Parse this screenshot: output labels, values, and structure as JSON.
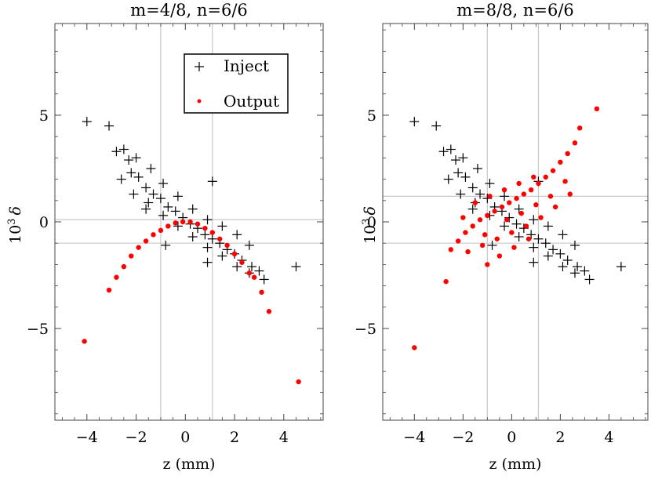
{
  "chart_data": [
    {
      "type": "scatter",
      "title": "m=4/8, n=6/6",
      "xlabel": "z (mm)",
      "ylabel_base": "10",
      "ylabel_exp": "3",
      "ylabel_sym": "δ",
      "xlim": [
        -5.3,
        5.6
      ],
      "ylim": [
        -9.3,
        9.3
      ],
      "xticks": [
        {
          "v": -4,
          "label": "−4"
        },
        {
          "v": -2,
          "label": "−2"
        },
        {
          "v": 0,
          "label": "0"
        },
        {
          "v": 2,
          "label": "2"
        },
        {
          "v": 4,
          "label": "4"
        }
      ],
      "yticks": [
        {
          "v": 5,
          "label": "5"
        },
        {
          "v": 0,
          "label": "0"
        },
        {
          "v": -5,
          "label": "−5"
        }
      ],
      "grid_x": [
        -1.0,
        1.1
      ],
      "grid_y": [
        0.1,
        -1.0
      ],
      "legend": {
        "placement": "top-center",
        "entries": [
          "Inject",
          "Output"
        ]
      },
      "series": [
        {
          "name": "Inject",
          "marker": "plus",
          "color": "#000000",
          "points": [
            [
              -4.0,
              4.7
            ],
            [
              -3.1,
              4.5
            ],
            [
              -2.8,
              3.3
            ],
            [
              -2.5,
              3.4
            ],
            [
              -2.3,
              2.9
            ],
            [
              -2.6,
              2.0
            ],
            [
              -2.2,
              2.3
            ],
            [
              -1.9,
              2.1
            ],
            [
              -1.6,
              1.6
            ],
            [
              -1.3,
              1.3
            ],
            [
              -1.0,
              1.1
            ],
            [
              -0.7,
              0.7
            ],
            [
              -0.4,
              0.5
            ],
            [
              -0.1,
              0.2
            ],
            [
              0.2,
              -0.1
            ],
            [
              0.5,
              -0.3
            ],
            [
              0.8,
              -0.6
            ],
            [
              1.1,
              -0.8
            ],
            [
              1.4,
              -1.0
            ],
            [
              1.7,
              -1.3
            ],
            [
              2.0,
              -1.5
            ],
            [
              2.3,
              -1.8
            ],
            [
              2.7,
              -2.1
            ],
            [
              3.0,
              -2.3
            ],
            [
              3.2,
              -2.7
            ],
            [
              4.5,
              -2.1
            ],
            [
              1.1,
              1.9
            ],
            [
              -1.6,
              0.6
            ],
            [
              0.9,
              -1.9
            ],
            [
              -0.8,
              -1.1
            ],
            [
              -2.0,
              3.0
            ],
            [
              -1.4,
              2.5
            ],
            [
              -0.9,
              1.8
            ],
            [
              -0.3,
              1.2
            ],
            [
              0.3,
              0.6
            ],
            [
              0.9,
              0.1
            ],
            [
              1.5,
              -0.2
            ],
            [
              2.1,
              -0.6
            ],
            [
              2.6,
              -1.1
            ],
            [
              -2.1,
              1.3
            ],
            [
              -1.5,
              0.9
            ],
            [
              -0.9,
              0.3
            ],
            [
              -0.3,
              -0.2
            ],
            [
              0.3,
              -0.7
            ],
            [
              0.9,
              -1.2
            ],
            [
              1.5,
              -1.6
            ],
            [
              2.1,
              -2.1
            ],
            [
              2.6,
              -2.4
            ]
          ]
        },
        {
          "name": "Output",
          "marker": "dot",
          "color": "#ff0000",
          "points": [
            [
              -4.1,
              -5.6
            ],
            [
              -3.1,
              -3.2
            ],
            [
              -2.8,
              -2.6
            ],
            [
              -2.5,
              -2.1
            ],
            [
              -2.2,
              -1.6
            ],
            [
              -1.9,
              -1.2
            ],
            [
              -1.6,
              -0.9
            ],
            [
              -1.3,
              -0.6
            ],
            [
              -1.0,
              -0.4
            ],
            [
              -0.7,
              -0.2
            ],
            [
              -0.4,
              -0.05
            ],
            [
              -0.1,
              0.0
            ],
            [
              0.2,
              0.0
            ],
            [
              0.5,
              -0.1
            ],
            [
              0.8,
              -0.3
            ],
            [
              1.1,
              -0.5
            ],
            [
              1.4,
              -0.8
            ],
            [
              1.7,
              -1.1
            ],
            [
              2.0,
              -1.5
            ],
            [
              2.3,
              -1.9
            ],
            [
              2.6,
              -2.4
            ],
            [
              2.8,
              -2.6
            ],
            [
              3.1,
              -3.3
            ],
            [
              3.4,
              -4.2
            ],
            [
              4.6,
              -7.5
            ]
          ]
        }
      ]
    },
    {
      "type": "scatter",
      "title": "m=8/8, n=6/6",
      "xlabel": "z (mm)",
      "ylabel_base": "10",
      "ylabel_exp": "3",
      "ylabel_sym": "δ",
      "xlim": [
        -5.3,
        5.6
      ],
      "ylim": [
        -9.3,
        9.3
      ],
      "xticks": [
        {
          "v": -4,
          "label": "−4"
        },
        {
          "v": -2,
          "label": "−2"
        },
        {
          "v": 0,
          "label": "0"
        },
        {
          "v": 2,
          "label": "2"
        },
        {
          "v": 4,
          "label": "4"
        }
      ],
      "yticks": [
        {
          "v": 5,
          "label": "5"
        },
        {
          "v": 0,
          "label": "0"
        },
        {
          "v": -5,
          "label": "−5"
        }
      ],
      "grid_x": [
        -1.0,
        1.1
      ],
      "grid_y": [
        1.2,
        -1.0
      ],
      "series": [
        {
          "name": "Inject",
          "marker": "plus",
          "color": "#000000",
          "points": [
            [
              -4.0,
              4.7
            ],
            [
              -3.1,
              4.5
            ],
            [
              -2.8,
              3.3
            ],
            [
              -2.5,
              3.4
            ],
            [
              -2.3,
              2.9
            ],
            [
              -2.6,
              2.0
            ],
            [
              -2.2,
              2.3
            ],
            [
              -1.9,
              2.1
            ],
            [
              -1.6,
              1.6
            ],
            [
              -1.3,
              1.3
            ],
            [
              -1.0,
              1.1
            ],
            [
              -0.7,
              0.7
            ],
            [
              -0.4,
              0.5
            ],
            [
              -0.1,
              0.2
            ],
            [
              0.2,
              -0.1
            ],
            [
              0.5,
              -0.3
            ],
            [
              0.8,
              -0.6
            ],
            [
              1.1,
              -0.8
            ],
            [
              1.4,
              -1.0
            ],
            [
              1.7,
              -1.3
            ],
            [
              2.0,
              -1.5
            ],
            [
              2.3,
              -1.8
            ],
            [
              2.7,
              -2.1
            ],
            [
              3.0,
              -2.3
            ],
            [
              3.2,
              -2.7
            ],
            [
              4.5,
              -2.1
            ],
            [
              1.1,
              1.9
            ],
            [
              -1.6,
              0.6
            ],
            [
              0.9,
              -1.9
            ],
            [
              -0.8,
              -1.1
            ],
            [
              -2.0,
              3.0
            ],
            [
              -1.4,
              2.5
            ],
            [
              -0.9,
              1.8
            ],
            [
              -0.3,
              1.2
            ],
            [
              0.3,
              0.6
            ],
            [
              0.9,
              0.1
            ],
            [
              1.5,
              -0.2
            ],
            [
              2.1,
              -0.6
            ],
            [
              2.6,
              -1.1
            ],
            [
              -2.1,
              1.3
            ],
            [
              -1.5,
              0.9
            ],
            [
              -0.9,
              0.3
            ],
            [
              -0.3,
              -0.2
            ],
            [
              0.3,
              -0.7
            ],
            [
              0.9,
              -1.2
            ],
            [
              1.5,
              -1.6
            ],
            [
              2.1,
              -2.1
            ],
            [
              2.6,
              -2.4
            ]
          ]
        },
        {
          "name": "Output",
          "marker": "dot",
          "color": "#ff0000",
          "points": [
            [
              -4.0,
              -5.9
            ],
            [
              -2.7,
              -2.8
            ],
            [
              -2.5,
              -1.3
            ],
            [
              -2.2,
              -0.9
            ],
            [
              -1.9,
              -0.5
            ],
            [
              -1.6,
              -0.2
            ],
            [
              -1.3,
              0.1
            ],
            [
              -1.0,
              0.3
            ],
            [
              -0.7,
              0.5
            ],
            [
              -0.4,
              0.7
            ],
            [
              -0.1,
              0.9
            ],
            [
              0.2,
              1.1
            ],
            [
              0.5,
              1.3
            ],
            [
              0.8,
              1.5
            ],
            [
              1.1,
              1.8
            ],
            [
              1.4,
              2.1
            ],
            [
              1.7,
              2.4
            ],
            [
              2.0,
              2.8
            ],
            [
              2.3,
              3.2
            ],
            [
              2.6,
              3.7
            ],
            [
              2.8,
              4.4
            ],
            [
              3.5,
              5.3
            ],
            [
              -1.8,
              -1.4
            ],
            [
              -1.2,
              -1.1
            ],
            [
              -0.6,
              -0.8
            ],
            [
              0.0,
              -0.5
            ],
            [
              0.6,
              -0.2
            ],
            [
              1.2,
              0.2
            ],
            [
              1.8,
              0.7
            ],
            [
              2.4,
              1.3
            ],
            [
              -1.5,
              0.9
            ],
            [
              -0.9,
              1.2
            ],
            [
              -0.3,
              1.5
            ],
            [
              0.3,
              1.8
            ],
            [
              0.9,
              2.1
            ],
            [
              -1.0,
              -2.0
            ],
            [
              -0.5,
              -1.6
            ],
            [
              0.1,
              -1.2
            ],
            [
              0.7,
              -0.8
            ],
            [
              -2.0,
              0.2
            ],
            [
              -1.1,
              -0.6
            ],
            [
              -0.2,
              0.1
            ],
            [
              0.4,
              0.4
            ],
            [
              1.0,
              0.8
            ],
            [
              1.6,
              1.2
            ],
            [
              2.2,
              1.9
            ]
          ]
        }
      ]
    }
  ]
}
